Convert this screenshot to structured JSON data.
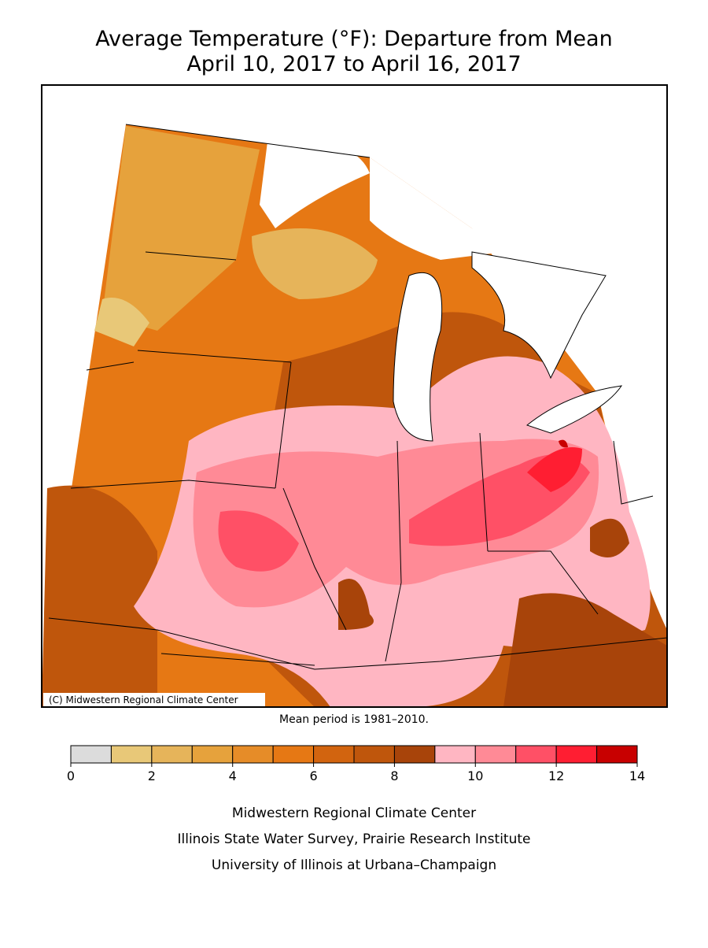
{
  "title": "Average Temperature (°F): Departure from Mean",
  "subtitle": "April 10, 2017 to April 16, 2017",
  "map": {
    "credit": "(C) Midwestern Regional Climate Center"
  },
  "note": "Mean period is 1981–2010.",
  "legend": {
    "ticks": [
      0,
      2,
      4,
      6,
      8,
      10,
      12,
      14
    ],
    "colors": [
      "#dcdcdc",
      "#e8c878",
      "#e6b45a",
      "#e6a23c",
      "#e68c28",
      "#e67814",
      "#d2640f",
      "#bf560c",
      "#a8440a",
      "#ffb6c2",
      "#ff8a96",
      "#ff5066",
      "#ff1e32",
      "#c80000"
    ]
  },
  "footer": [
    "Midwestern Regional Climate Center",
    "Illinois State Water Survey, Prairie Research Institute",
    "University of Illinois at Urbana–Champaign"
  ]
}
